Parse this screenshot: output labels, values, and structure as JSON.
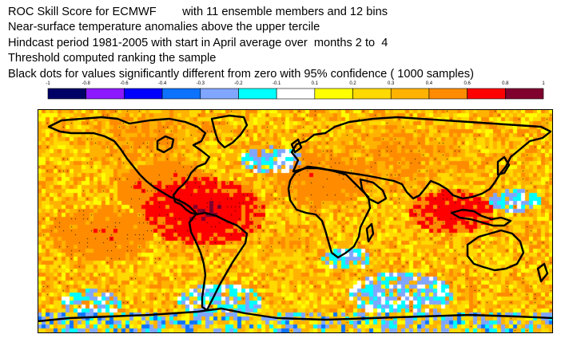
{
  "title_lines": [
    "ROC Skill Score for ECMWF        with 11 ensemble members and 12 bins",
    "Near-surface temperature anomalies above the upper tercile",
    "Hindcast period 1981-2005 with start in April average over  months 2 to  4",
    "Threshold computed ranking the sample",
    "Black dots for values significantly different from zero with 95% confidence ( 1000 samples)"
  ],
  "legend": {
    "tick_labels": [
      "-1",
      "-0.8",
      "-0.6",
      "-0.4",
      "-0.3",
      "-0.2",
      "-0.1",
      "0.1",
      "0.2",
      "0.3",
      "0.4",
      "0.6",
      "0.8",
      "1"
    ],
    "bins": [
      {
        "from": -1.0,
        "to": -0.8,
        "color": "#000066"
      },
      {
        "from": -0.8,
        "to": -0.6,
        "color": "#8c19ff"
      },
      {
        "from": -0.6,
        "to": -0.4,
        "color": "#0000ff"
      },
      {
        "from": -0.4,
        "to": -0.3,
        "color": "#0d73ff"
      },
      {
        "from": -0.3,
        "to": -0.2,
        "color": "#80a6ff"
      },
      {
        "from": -0.2,
        "to": -0.1,
        "color": "#00ffff"
      },
      {
        "from": -0.1,
        "to": 0.1,
        "color": "#ffffff"
      },
      {
        "from": 0.1,
        "to": 0.2,
        "color": "#ffff00"
      },
      {
        "from": 0.2,
        "to": 0.3,
        "color": "#ffd900"
      },
      {
        "from": 0.3,
        "to": 0.4,
        "color": "#ffb300"
      },
      {
        "from": 0.4,
        "to": 0.6,
        "color": "#ff8c00"
      },
      {
        "from": 0.6,
        "to": 0.8,
        "color": "#ff0000"
      },
      {
        "from": 0.8,
        "to": 1.0,
        "color": "#80002e"
      }
    ]
  },
  "map": {
    "projection": "equirectangular",
    "lon_range": [
      -180,
      180
    ],
    "lat_range": [
      -90,
      90
    ],
    "field": "ROC skill score, gridded",
    "significance_marker": "black dots",
    "coastline_color": "#000000"
  }
}
